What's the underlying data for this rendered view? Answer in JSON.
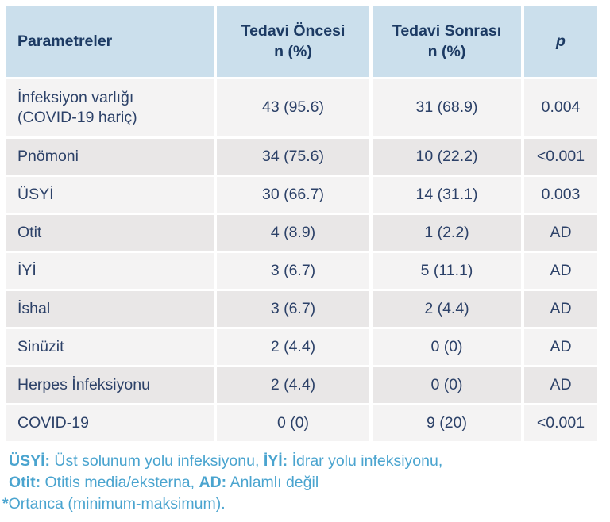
{
  "colors": {
    "header_bg": "#cbdfec",
    "header_text": "#1c3a63",
    "row_light_bg": "#f4f3f3",
    "row_dark_bg": "#e9e7e7",
    "cell_text": "#2c4168",
    "footnote_text": "#4aa4cf",
    "page_bg": "#ffffff"
  },
  "table": {
    "columns": [
      {
        "label": "Parametreler"
      },
      {
        "label": "Tedavi Öncesi\nn (%)"
      },
      {
        "label": "Tedavi Sonrası\nn (%)"
      },
      {
        "label": "p"
      }
    ],
    "rows": [
      {
        "param": "İnfeksiyon varlığı (COVID-19 hariç)",
        "before": "43 (95.6)",
        "after": "31 (68.9)",
        "p": "0.004"
      },
      {
        "param": "Pnömoni",
        "before": "34 (75.6)",
        "after": "10 (22.2)",
        "p": "<0.001"
      },
      {
        "param": "ÜSYİ",
        "before": "30 (66.7)",
        "after": "14 (31.1)",
        "p": "0.003"
      },
      {
        "param": "Otit",
        "before": "4 (8.9)",
        "after": "1 (2.2)",
        "p": "AD"
      },
      {
        "param": "İYİ",
        "before": "3 (6.7)",
        "after": "5 (11.1)",
        "p": "AD"
      },
      {
        "param": "İshal",
        "before": "3 (6.7)",
        "after": "2 (4.4)",
        "p": "AD"
      },
      {
        "param": "Sinüzit",
        "before": "2 (4.4)",
        "after": "0 (0)",
        "p": "AD"
      },
      {
        "param": "Herpes İnfeksiyonu",
        "before": "2 (4.4)",
        "after": "0 (0)",
        "p": "AD"
      },
      {
        "param": "COVID-19",
        "before": "0 (0)",
        "after": "9 (20)",
        "p": "<0.001"
      }
    ]
  },
  "footnotes": {
    "line1": {
      "label1": "ÜSYİ:",
      "text1": " Üst solunum yolu infeksiyonu, ",
      "label2": "İYİ:",
      "text2": " İdrar yolu infeksiyonu,"
    },
    "line2": {
      "label1": "Otit:",
      "text1": " Otitis media/eksterna, ",
      "label2": "AD:",
      "text2": " Anlamlı değil"
    },
    "line3": {
      "asterisk": "*",
      "text": "Ortanca (minimum-maksimum)."
    }
  }
}
